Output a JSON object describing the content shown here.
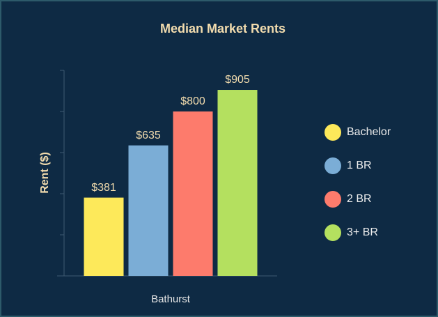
{
  "chart_data": {
    "type": "bar",
    "title": "Median Market Rents",
    "y_label": "Rent ($)",
    "categories": [
      "Bathurst"
    ],
    "series": [
      {
        "name": "Bachelor",
        "color": "#fde95a",
        "values": [
          381
        ],
        "value_labels": [
          "$381"
        ]
      },
      {
        "name": "1 BR",
        "color": "#7badd6",
        "values": [
          635
        ],
        "value_labels": [
          "$635"
        ]
      },
      {
        "name": "2 BR",
        "color": "#fd7b6c",
        "values": [
          800
        ],
        "value_labels": [
          "$800"
        ]
      },
      {
        "name": "3+ BR",
        "color": "#b4e05f",
        "values": [
          905
        ],
        "value_labels": [
          "$905"
        ]
      }
    ],
    "ylim": [
      0,
      1000
    ],
    "legend": "right"
  }
}
